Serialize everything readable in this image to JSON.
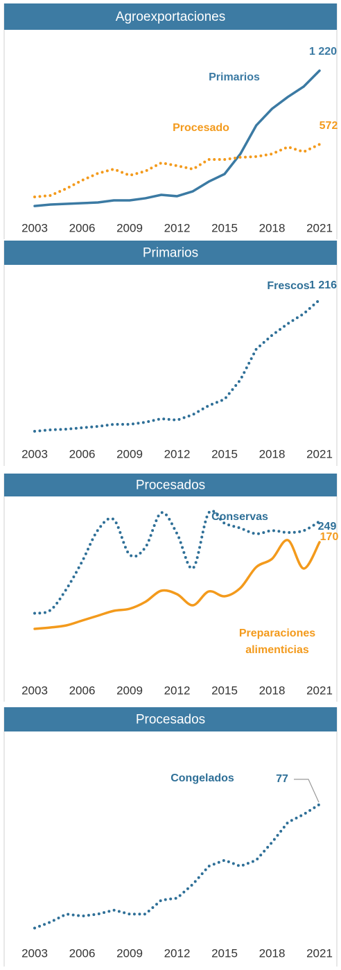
{
  "chart_data": [
    {
      "type": "line",
      "title": "Agroexportaciones",
      "x": [
        2003,
        2004,
        2005,
        2006,
        2007,
        2008,
        2009,
        2010,
        2011,
        2012,
        2013,
        2014,
        2015,
        2016,
        2017,
        2018,
        2019,
        2020,
        2021
      ],
      "xlim": [
        2003,
        2021
      ],
      "xticks": [
        2003,
        2006,
        2009,
        2012,
        2015,
        2018,
        2021
      ],
      "ylim": [
        0,
        1250
      ],
      "series": [
        {
          "name": "Primarios",
          "color": "#3b7aa3",
          "style": "solid",
          "values": [
            30,
            43,
            49,
            55,
            61,
            79,
            79,
            98,
            128,
            116,
            159,
            244,
            311,
            488,
            738,
            885,
            989,
            1080,
            1220
          ],
          "value_labels": [
            null,
            null,
            null,
            null,
            null,
            null,
            null,
            null,
            null,
            null,
            null,
            null,
            null,
            null,
            null,
            null,
            null,
            null,
            "1 220"
          ]
        },
        {
          "name": "Procesado",
          "color": "#f39a1c",
          "style": "dotted",
          "values": [
            110,
            122,
            183,
            256,
            317,
            354,
            299,
            336,
            409,
            384,
            354,
            439,
            439,
            458,
            464,
            488,
            549,
            506,
            572
          ]
        }
      ]
    },
    {
      "type": "line",
      "title": "Primarios",
      "x": [
        2003,
        2004,
        2005,
        2006,
        2007,
        2008,
        2009,
        2010,
        2011,
        2012,
        2013,
        2014,
        2015,
        2016,
        2017,
        2018,
        2019,
        2020,
        2021
      ],
      "xlim": [
        2003,
        2021
      ],
      "xticks": [
        2003,
        2006,
        2009,
        2012,
        2015,
        2018,
        2021
      ],
      "ylim": [
        0,
        1250
      ],
      "series": [
        {
          "name": "Frescos",
          "color": "#2e6f97",
          "style": "dotted",
          "values": [
            25,
            38,
            44,
            57,
            69,
            88,
            88,
            107,
            139,
            126,
            176,
            258,
            315,
            491,
            769,
            895,
            1000,
            1090,
            1216
          ],
          "value_labels": [
            null,
            null,
            null,
            null,
            null,
            null,
            null,
            null,
            null,
            null,
            null,
            null,
            null,
            null,
            null,
            null,
            null,
            null,
            "1 216"
          ]
        }
      ]
    },
    {
      "type": "line",
      "title": "Procesados",
      "smooth": true,
      "x": [
        2003,
        2004,
        2005,
        2006,
        2007,
        2008,
        2009,
        2010,
        2011,
        2012,
        2013,
        2014,
        2015,
        2016,
        2017,
        2018,
        2019,
        2020,
        2021
      ],
      "xlim": [
        2003,
        2021
      ],
      "xticks": [
        2003,
        2006,
        2009,
        2012,
        2015,
        2018,
        2021
      ],
      "ylim": [
        60,
        285
      ],
      "y2lim": [
        32,
        232
      ],
      "series": [
        {
          "name": "Conservas",
          "color": "#2e6f97",
          "style": "dotted",
          "values": [
            100,
            105,
            139,
            184,
            235,
            252,
            195,
            207,
            263,
            229,
            173,
            263,
            246,
            238,
            229,
            234,
            231,
            234,
            249
          ]
        },
        {
          "name": "Preparaciones alimenticias",
          "color": "#f39a1c",
          "style": "solid",
          "axis": "y2",
          "values": [
            45,
            47,
            50,
            57,
            64,
            71,
            74,
            84,
            100,
            95,
            79,
            99,
            92,
            104,
            134,
            146,
            173,
            132,
            170
          ]
        }
      ]
    },
    {
      "type": "line",
      "title": "Procesados",
      "x": [
        2003,
        2004,
        2005,
        2006,
        2007,
        2008,
        2009,
        2010,
        2011,
        2012,
        2013,
        2014,
        2015,
        2016,
        2017,
        2018,
        2019,
        2020,
        2021
      ],
      "xlim": [
        2003,
        2021
      ],
      "xticks": [
        2003,
        2006,
        2009,
        2012,
        2015,
        2018,
        2021
      ],
      "ylim": [
        11,
        84
      ],
      "series": [
        {
          "name": "Congelados",
          "color": "#2e6f97",
          "style": "dotted",
          "values": [
            15,
            18,
            22,
            21,
            22,
            24,
            22,
            22,
            29,
            30,
            37,
            46,
            49,
            46,
            49,
            58,
            68,
            72,
            77
          ]
        }
      ]
    }
  ]
}
